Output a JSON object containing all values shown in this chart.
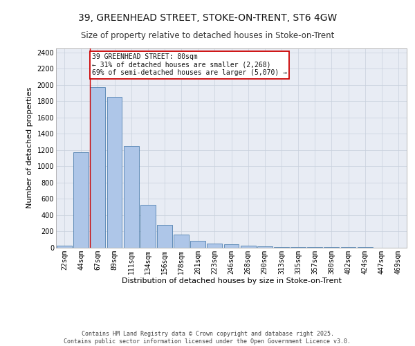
{
  "title_line1": "39, GREENHEAD STREET, STOKE-ON-TRENT, ST6 4GW",
  "title_line2": "Size of property relative to detached houses in Stoke-on-Trent",
  "xlabel": "Distribution of detached houses by size in Stoke-on-Trent",
  "ylabel": "Number of detached properties",
  "categories": [
    "22sqm",
    "44sqm",
    "67sqm",
    "89sqm",
    "111sqm",
    "134sqm",
    "156sqm",
    "178sqm",
    "201sqm",
    "223sqm",
    "246sqm",
    "268sqm",
    "290sqm",
    "313sqm",
    "335sqm",
    "357sqm",
    "380sqm",
    "402sqm",
    "424sqm",
    "447sqm",
    "469sqm"
  ],
  "values": [
    22,
    1175,
    1975,
    1855,
    1245,
    520,
    275,
    155,
    85,
    48,
    35,
    25,
    10,
    5,
    3,
    2,
    1,
    1,
    1,
    0,
    0
  ],
  "bar_color": "#aec6e8",
  "bar_edge_color": "#5080b0",
  "annotation_text": "39 GREENHEAD STREET: 80sqm\n← 31% of detached houses are smaller (2,268)\n69% of semi-detached houses are larger (5,070) →",
  "annotation_box_color": "#ffffff",
  "annotation_box_edge_color": "#cc0000",
  "ylim": [
    0,
    2450
  ],
  "yticks": [
    0,
    200,
    400,
    600,
    800,
    1000,
    1200,
    1400,
    1600,
    1800,
    2000,
    2200,
    2400
  ],
  "grid_color": "#c8d0dc",
  "bg_color": "#e8ecf4",
  "footer_line1": "Contains HM Land Registry data © Crown copyright and database right 2025.",
  "footer_line2": "Contains public sector information licensed under the Open Government Licence v3.0.",
  "title_fontsize": 10,
  "subtitle_fontsize": 8.5,
  "xlabel_fontsize": 8,
  "ylabel_fontsize": 8,
  "tick_fontsize": 7,
  "footer_fontsize": 6,
  "annot_fontsize": 7
}
